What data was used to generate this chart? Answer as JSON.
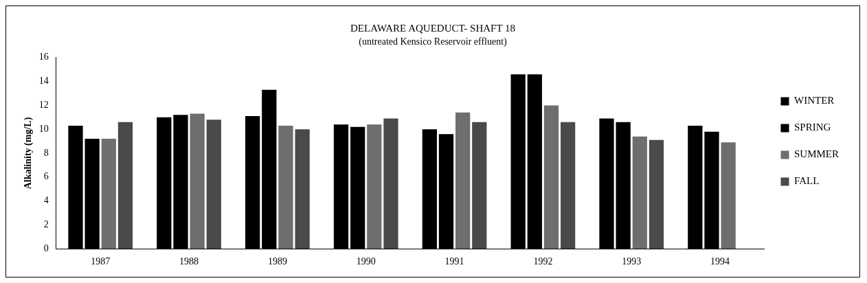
{
  "chart_data": {
    "type": "bar",
    "title": "DELAWARE AQUEDUCT- SHAFT 18",
    "subtitle": "(untreated Kensico Reservoir effluent)",
    "ylabel": "Alkalinity (mg/L)",
    "categories": [
      "1987",
      "1988",
      "1989",
      "1990",
      "1991",
      "1992",
      "1993",
      "1994"
    ],
    "series": [
      {
        "name": "WINTER",
        "color": "#000000",
        "values": [
          10.3,
          11.0,
          11.1,
          10.4,
          10.0,
          14.6,
          10.9,
          10.3
        ]
      },
      {
        "name": "SPRING",
        "color": "#000000",
        "values": [
          9.2,
          11.2,
          13.3,
          10.2,
          9.6,
          14.6,
          10.6,
          9.8
        ]
      },
      {
        "name": "SUMMER",
        "color": "#6e6e6e",
        "values": [
          9.2,
          11.3,
          10.3,
          10.4,
          11.4,
          12.0,
          9.4,
          8.9
        ]
      },
      {
        "name": "FALL",
        "color": "#4a4a4a",
        "values": [
          10.6,
          10.8,
          10.0,
          10.9,
          10.6,
          10.6,
          9.1,
          null
        ]
      }
    ],
    "ylim": [
      0,
      16
    ],
    "yticks": [
      0,
      2,
      4,
      6,
      8,
      10,
      12,
      14,
      16
    ],
    "grid": false,
    "legend": "right"
  }
}
